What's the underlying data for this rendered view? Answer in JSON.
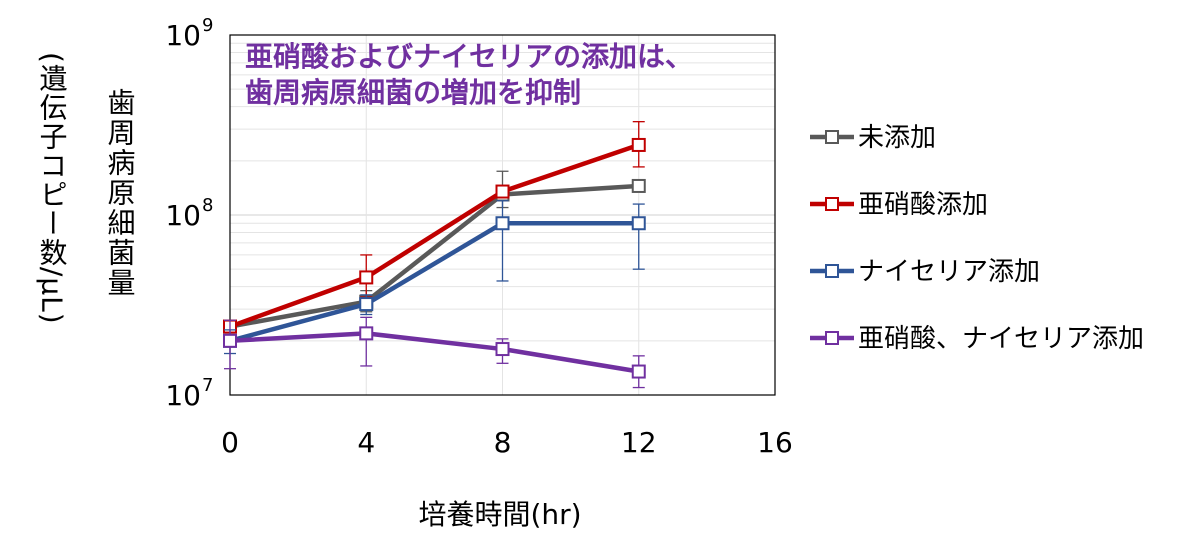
{
  "chart_data": {
    "type": "line",
    "y_scale": "log",
    "x": [
      0,
      4,
      8,
      12
    ],
    "xlim": [
      0,
      16
    ],
    "x_ticks": [
      "0",
      "4",
      "8",
      "12",
      "16"
    ],
    "ylim": [
      10000000,
      1000000000
    ],
    "y_ticks": [
      {
        "base": "10",
        "exp": "7",
        "value": 10000000
      },
      {
        "base": "10",
        "exp": "8",
        "value": 100000000
      },
      {
        "base": "10",
        "exp": "9",
        "value": 1000000000
      }
    ],
    "xlabel": "培養時間(hr)",
    "ylabel_title": "歯周病原細菌量",
    "ylabel_unit": "(遺伝子コピー数/μL)",
    "annotation": [
      "亜硝酸およびナイセリアの添加は、",
      "歯周病原細菌の増加を抑制"
    ],
    "grid": true,
    "legend_position": "right",
    "series": [
      {
        "name": "未添加",
        "color": "#595959",
        "values": [
          24000000,
          33000000,
          130000000,
          145000000
        ],
        "err_low": [
          null,
          29000000,
          110000000,
          145000000
        ],
        "err_high": [
          null,
          38000000,
          175000000,
          145000000
        ]
      },
      {
        "name": "亜硝酸添加",
        "color": "#c00000",
        "values": [
          24000000,
          45000000,
          135000000,
          245000000
        ],
        "err_low": [
          null,
          35000000,
          125000000,
          185000000
        ],
        "err_high": [
          null,
          60000000,
          145000000,
          330000000
        ]
      },
      {
        "name": "ナイセリア添加",
        "color": "#2f5597",
        "values": [
          20000000,
          32000000,
          90000000,
          90000000
        ],
        "err_low": [
          17000000,
          28000000,
          43000000,
          50000000
        ],
        "err_high": [
          23000000,
          36000000,
          120000000,
          115000000
        ]
      },
      {
        "name": "亜硝酸、ナイセリア添加",
        "color": "#7030a0",
        "values": [
          20000000,
          22000000,
          18000000,
          13500000
        ],
        "err_low": [
          14000000,
          14500000,
          15000000,
          11000000
        ],
        "err_high": [
          26000000,
          27000000,
          20500000,
          16500000
        ]
      }
    ]
  }
}
